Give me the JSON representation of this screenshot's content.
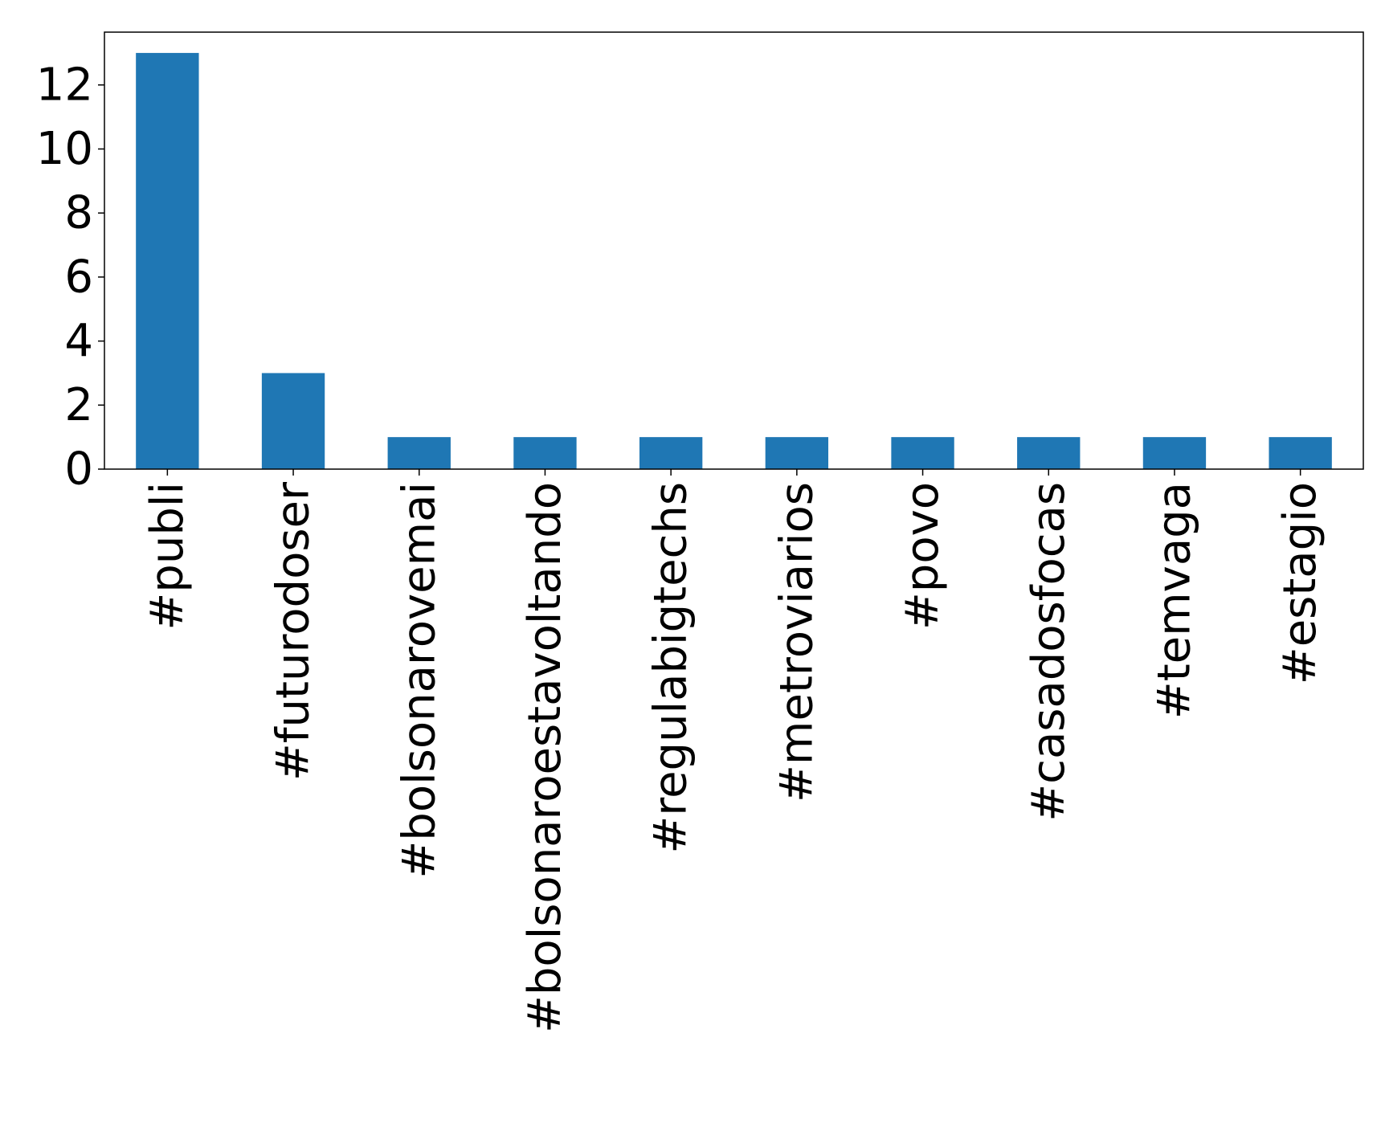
{
  "chart_data": {
    "type": "bar",
    "title": "",
    "xlabel": "",
    "ylabel": "",
    "categories": [
      "#publi",
      "#futurodoser",
      "#bolsonarovemai",
      "#bolsonaroestavoltando",
      "#regulabigtechs",
      "#metroviarios",
      "#povo",
      "#casadosfocas",
      "#temvaga",
      "#estagio"
    ],
    "values": [
      13,
      3,
      1,
      1,
      1,
      1,
      1,
      1,
      1,
      1
    ],
    "ylim": [
      0,
      13.65
    ],
    "yticks": [
      0,
      2,
      4,
      6,
      8,
      10,
      12
    ],
    "bar_color": "#1f77b4",
    "grid": false,
    "legend": "none"
  }
}
